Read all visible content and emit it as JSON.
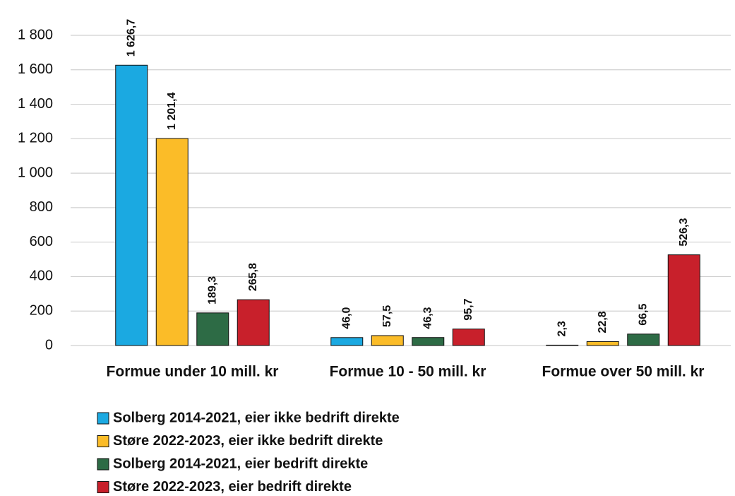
{
  "chart_data": {
    "type": "bar",
    "categories": [
      "Formue under 10 mill. kr",
      "Formue 10 - 50 mill. kr",
      "Formue over 50 mill. kr"
    ],
    "series": [
      {
        "name": "Solberg 2014-2021, eier ikke bedrift direkte",
        "color": "#1ba9e1",
        "values": [
          1626.7,
          46.0,
          2.3
        ],
        "value_labels": [
          "1 626,7",
          "46,0",
          "2,3"
        ]
      },
      {
        "name": "Støre 2022-2023, eier ikke bedrift direkte",
        "color": "#fbbc28",
        "values": [
          1201.4,
          57.5,
          22.8
        ],
        "value_labels": [
          "1 201,4",
          "57,5",
          "22,8"
        ]
      },
      {
        "name": "Solberg 2014-2021, eier bedrift direkte",
        "color": "#2d6b45",
        "values": [
          189.3,
          46.3,
          66.5
        ],
        "value_labels": [
          "189,3",
          "46,3",
          "66,5"
        ]
      },
      {
        "name": "Støre 2022-2023, eier bedrift direkte",
        "color": "#c8202b",
        "values": [
          265.8,
          95.7,
          526.3
        ],
        "value_labels": [
          "265,8",
          "95,7",
          "526,3"
        ]
      }
    ],
    "ylim": [
      0,
      1800
    ],
    "yticks": [
      0,
      200,
      400,
      600,
      800,
      {
        "value": 1000,
        "label": "1 000"
      },
      {
        "value": 1200,
        "label": "1 200"
      },
      {
        "value": 1400,
        "label": "1 400"
      },
      {
        "value": 1600,
        "label": "1 600"
      },
      {
        "value": 1800,
        "label": "1 800"
      }
    ],
    "grid": true,
    "legend": "bottom"
  }
}
